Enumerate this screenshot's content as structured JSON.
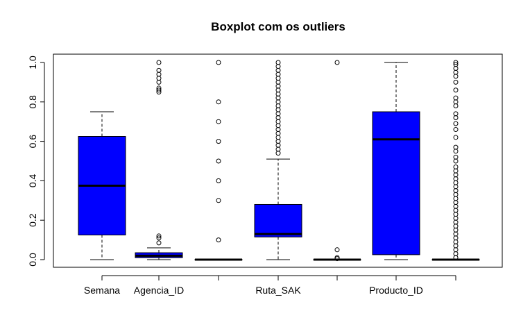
{
  "chart_data": {
    "type": "boxplot",
    "title": "Boxplot com os outliers",
    "xlabel": "",
    "ylabel": "",
    "ylim": [
      0,
      1
    ],
    "y_ticks": [
      "0.0",
      "0.2",
      "0.4",
      "0.6",
      "0.8",
      "1.0"
    ],
    "x_tick_labels": [
      "Semana",
      "Agencia_ID",
      "",
      "Ruta_SAK",
      "",
      "Producto_ID",
      ""
    ],
    "box_color": "#0000FF",
    "series": [
      {
        "label": "Semana",
        "min": 0.0,
        "q1": 0.125,
        "median": 0.375,
        "q3": 0.625,
        "max": 0.75,
        "outliers": []
      },
      {
        "label": "Agencia_ID",
        "min": 0.0,
        "q1": 0.01,
        "median": 0.02,
        "q3": 0.035,
        "max": 0.06,
        "outliers": [
          0.085,
          0.11,
          0.12,
          0.85,
          0.86,
          0.87,
          0.9,
          0.92,
          0.94,
          0.96,
          1.0
        ]
      },
      {
        "label": "",
        "min": 0.0,
        "q1": 0.0,
        "median": 0.0,
        "q3": 0.0,
        "max": 0.0,
        "outliers": [
          0.1,
          0.3,
          0.4,
          0.5,
          0.6,
          0.7,
          0.8,
          1.0
        ]
      },
      {
        "label": "Ruta_SAK",
        "min": 0.0,
        "q1": 0.115,
        "median": 0.13,
        "q3": 0.28,
        "max": 0.51,
        "outliers": [
          0.54,
          0.56,
          0.58,
          0.6,
          0.62,
          0.64,
          0.66,
          0.68,
          0.7,
          0.72,
          0.74,
          0.76,
          0.78,
          0.8,
          0.82,
          0.84,
          0.86,
          0.88,
          0.9,
          0.92,
          0.94,
          0.96,
          0.98,
          1.0
        ]
      },
      {
        "label": "",
        "min": 0.0,
        "q1": 0.0,
        "median": 0.0,
        "q3": 0.0,
        "max": 0.0,
        "outliers": [
          0.005,
          0.01,
          0.05,
          1.0
        ]
      },
      {
        "label": "Producto_ID",
        "min": 0.0,
        "q1": 0.025,
        "median": 0.61,
        "q3": 0.75,
        "max": 1.0,
        "outliers": []
      },
      {
        "label": "",
        "min": 0.0,
        "q1": 0.0,
        "median": 0.0,
        "q3": 0.0,
        "max": 0.0,
        "outliers": [
          0.01,
          0.03,
          0.05,
          0.07,
          0.09,
          0.11,
          0.13,
          0.15,
          0.17,
          0.19,
          0.21,
          0.23,
          0.25,
          0.27,
          0.29,
          0.31,
          0.33,
          0.35,
          0.37,
          0.39,
          0.41,
          0.43,
          0.45,
          0.47,
          0.5,
          0.52,
          0.55,
          0.57,
          0.62,
          0.66,
          0.69,
          0.72,
          0.74,
          0.78,
          0.8,
          0.82,
          0.86,
          0.9,
          0.93,
          0.95,
          0.97,
          0.99,
          1.0
        ]
      }
    ]
  }
}
